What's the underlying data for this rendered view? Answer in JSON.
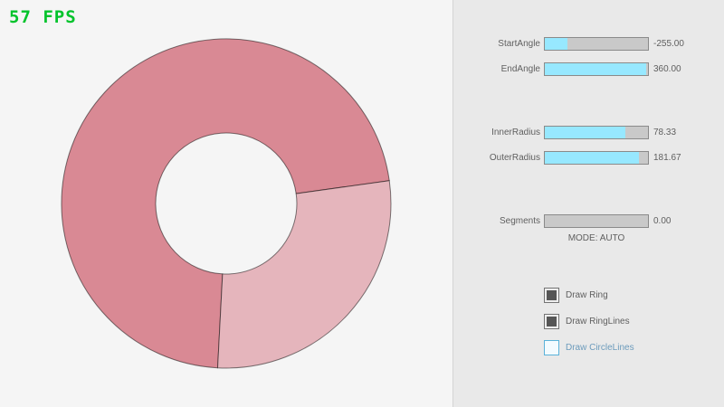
{
  "fps_label": "57 FPS",
  "ring": {
    "start_angle": "-255.00",
    "end_angle": "360.00",
    "inner_radius": "78.33",
    "outer_radius": "181.67",
    "segments": "0.00",
    "color_overlap": "#d98994",
    "color_single": "#e5b5bc",
    "line_color": "rgba(0,0,0,0.5)"
  },
  "panel": {
    "accent_fill": "#97e8ff",
    "sliders": [
      {
        "label": "StartAngle",
        "value": "-255.00",
        "fill_pct": 22
      },
      {
        "label": "EndAngle",
        "value": "360.00",
        "fill_pct": 98
      },
      {
        "label": "InnerRadius",
        "value": "78.33",
        "fill_pct": 78
      },
      {
        "label": "OuterRadius",
        "value": "181.67",
        "fill_pct": 91
      },
      {
        "label": "Segments",
        "value": "0.00",
        "fill_pct": 0
      }
    ],
    "mode_text": "MODE: AUTO",
    "checkboxes": [
      {
        "label": "Draw Ring",
        "checked": true,
        "focused": false
      },
      {
        "label": "Draw RingLines",
        "checked": true,
        "focused": false
      },
      {
        "label": "Draw CircleLines",
        "checked": false,
        "focused": true
      }
    ]
  }
}
